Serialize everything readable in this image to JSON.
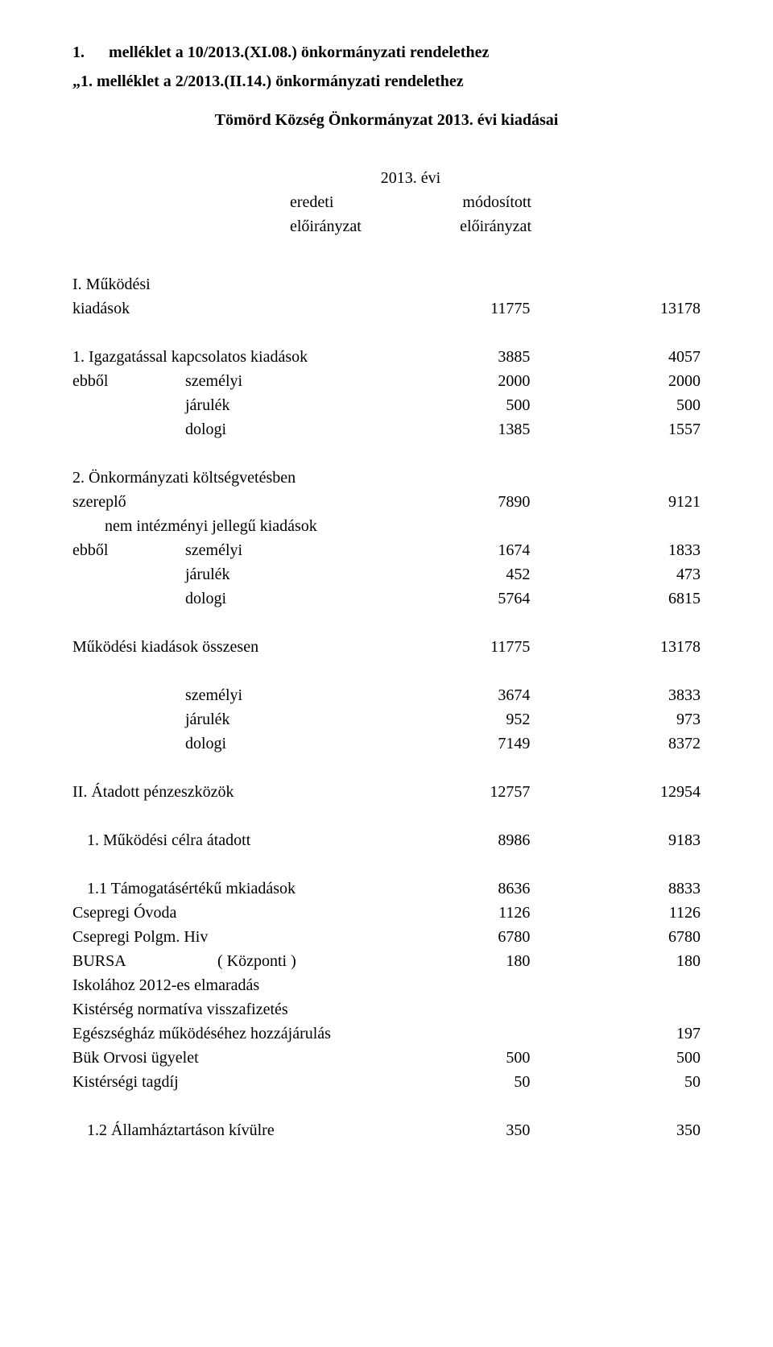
{
  "title": {
    "line1_prefix": "1.",
    "line1": "melléklet a 10/2013.(XI.08.) önkormányzati rendelethez",
    "line2": "„1. melléklet a 2/2013.(II.14.) önkormányzati rendelethez",
    "line3": "Tömörd Község Önkormányzat 2013. évi kiadásai"
  },
  "header": {
    "year": "2013. évi",
    "c1a": "eredeti",
    "c1b": "előirányzat",
    "c2a": "módosított",
    "c2b": "előirányzat"
  },
  "rows": [
    {
      "label": "I. Működési",
      "v1": "",
      "v2": "",
      "sep_before": false
    },
    {
      "label": "kiadások",
      "v1": "11775",
      "v2": "13178",
      "sep_after": true
    },
    {
      "label": "1. Igazgatással kapcsolatos kiadások",
      "v1": "3885",
      "v2": "4057"
    },
    {
      "prefix": "ebből",
      "sub": "személyi",
      "v1": "2000",
      "v2": "2000"
    },
    {
      "prefix": "",
      "sub": "járulék",
      "v1": "500",
      "v2": "500"
    },
    {
      "prefix": "",
      "sub": "dologi",
      "v1": "1385",
      "v2": "1557",
      "sep_after": true
    },
    {
      "label": "2. Önkormányzati költségvetésben",
      "v1": "",
      "v2": ""
    },
    {
      "label": "szereplő",
      "v1": "7890",
      "v2": "9121"
    },
    {
      "prefix": "",
      "sub": "nem intézményi jellegű kiadások",
      "v1": "",
      "v2": "",
      "sub_only": true
    },
    {
      "prefix": "ebből",
      "sub": "személyi",
      "v1": "1674",
      "v2": "1833"
    },
    {
      "prefix": "",
      "sub": "járulék",
      "v1": "452",
      "v2": "473"
    },
    {
      "prefix": "",
      "sub": "dologi",
      "v1": "5764",
      "v2": "6815",
      "sep_after": true
    },
    {
      "label": "Működési kiadások összesen",
      "v1": "11775",
      "v2": "13178",
      "sep_after": true
    },
    {
      "prefix": "",
      "sub": "személyi",
      "v1": "3674",
      "v2": "3833"
    },
    {
      "prefix": "",
      "sub": "járulék",
      "v1": "952",
      "v2": "973"
    },
    {
      "prefix": "",
      "sub": "dologi",
      "v1": "7149",
      "v2": "8372",
      "sep_after": true
    },
    {
      "label": "II. Átadott pénzeszközök",
      "v1": "12757",
      "v2": "12954",
      "sep_after": true
    },
    {
      "label": "1. Működési célra átadott",
      "v1": "8986",
      "v2": "9183",
      "sep_after": true,
      "pad_left": true
    },
    {
      "label": "1.1 Támogatásértékű mkiadások",
      "v1": "8636",
      "v2": "8833",
      "pad_left": true
    },
    {
      "label": "Csepregi Óvoda",
      "v1": "1126",
      "v2": "1126"
    },
    {
      "label": "Csepregi Polgm. Hiv",
      "v1": "6780",
      "v2": "6780"
    },
    {
      "label_split": [
        "BURSA",
        "( Központi )"
      ],
      "v1": "180",
      "v2": "180"
    },
    {
      "label": "Iskolához 2012-es elmaradás",
      "v1": "",
      "v2": ""
    },
    {
      "label": "Kistérség normatíva visszafizetés",
      "v1": "",
      "v2": ""
    },
    {
      "label": "Egészségház működéséhez hozzájárulás",
      "v1": "",
      "v2": "197"
    },
    {
      "label": "Bük Orvosi  ügyelet",
      "v1": "500",
      "v2": "500"
    },
    {
      "label": "Kistérségi tagdíj",
      "v1": "50",
      "v2": "50",
      "sep_after": true
    },
    {
      "label": "1.2 Államháztartáson kívülre",
      "v1": "350",
      "v2": "350",
      "pad_left": true
    }
  ]
}
